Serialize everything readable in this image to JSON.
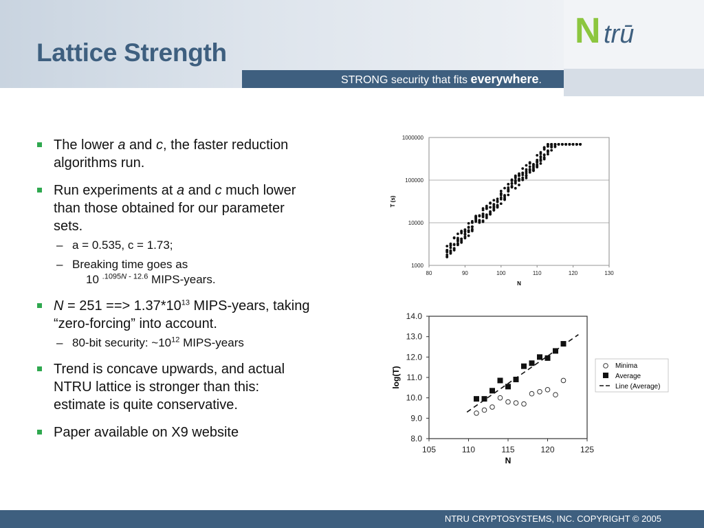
{
  "header": {
    "title": "Lattice Strength",
    "tagline_plain": "STRONG security that fits ",
    "tagline_bold": "everywhere",
    "tagline_end": ".",
    "logo_n": "N",
    "logo_rest": "trū",
    "accent": "#3e5f7f",
    "logo_green": "#8cc63f"
  },
  "bullets": {
    "b1": {
      "t1": "The lower ",
      "i1": "a",
      "t2": " and ",
      "i2": "c",
      "t3": ", the faster reduction algorithms run."
    },
    "b2": {
      "t1": "Run experiments at ",
      "i1": "a",
      "t2": " and ",
      "i2": "c",
      "t3": " much lower than those obtained for our parameter sets."
    },
    "b2_sub1": "a = 0.535, c = 1.73;",
    "b2_sub2": {
      "line1": "Breaking time goes as",
      "base": "10 ",
      "exp1": ".1095",
      "exp2": "N",
      "exp3": " - 12.6",
      "tail": " MIPS-years."
    },
    "b3": {
      "i1": "N",
      "t1": " = 251 ==> 1.37*10",
      "exp": "13",
      "t2": " MIPS-years, taking “zero-forcing” into account."
    },
    "b3_sub1": {
      "t1": "80-bit security: ~10",
      "exp": "12",
      "t2": " MIPS-years"
    },
    "b4": "Trend is concave upwards, and actual NTRU lattice is stronger than this: estimate is quite conservative.",
    "b5": "Paper available on X9 website",
    "marker_color": "#2fa84f"
  },
  "footer": {
    "text": "NTRU CRYPTOSYSTEMS, INC. COPYRIGHT © 2005"
  },
  "chart_data": [
    {
      "type": "scatter",
      "xlabel": "N",
      "ylabel": "T (s)",
      "xlim": [
        80,
        130
      ],
      "ylim": [
        1000,
        1000000
      ],
      "yscale": "log",
      "xticks": [
        "80",
        "90",
        "100",
        "110",
        "120",
        "130"
      ],
      "yticks": [
        "1000",
        "10000",
        "100000",
        "1000000"
      ],
      "grid": true,
      "series": [
        {
          "values": "dense cloud: each N from 85 to 122 has about 6-10 runs; per-N log10(T) centered near 3.33 + 0.085*(N-85) for N up to 112 and steeper beyond, spreading to about 5.8 at N=120-122"
        }
      ]
    },
    {
      "type": "scatter",
      "xlabel": "N",
      "ylabel": "log(T)",
      "xlim": [
        105,
        125
      ],
      "ylim": [
        8.0,
        14.0
      ],
      "xticks": [
        "105",
        "110",
        "115",
        "120",
        "125"
      ],
      "yticks": [
        "8.0",
        "9.0",
        "10.0",
        "11.0",
        "12.0",
        "13.0",
        "14.0"
      ],
      "legend": "right",
      "series": [
        {
          "name": "Minima",
          "x": [
            111,
            112,
            113,
            114,
            115,
            116,
            117,
            118,
            119,
            120,
            121,
            122
          ],
          "y": [
            9.25,
            9.4,
            9.55,
            10.0,
            9.8,
            9.75,
            9.7,
            10.2,
            10.3,
            10.4,
            10.15,
            10.85
          ]
        },
        {
          "name": "Average",
          "x": [
            111,
            112,
            113,
            114,
            115,
            116,
            117,
            118,
            119,
            120,
            121,
            122
          ],
          "y": [
            9.95,
            9.95,
            10.35,
            10.85,
            10.55,
            10.9,
            11.55,
            11.7,
            12.0,
            11.95,
            12.3,
            12.65
          ]
        },
        {
          "name": "Line (Average)",
          "x": [
            109.8,
            123.9
          ],
          "y": [
            9.3,
            13.1
          ],
          "style": "dashed"
        }
      ]
    }
  ]
}
